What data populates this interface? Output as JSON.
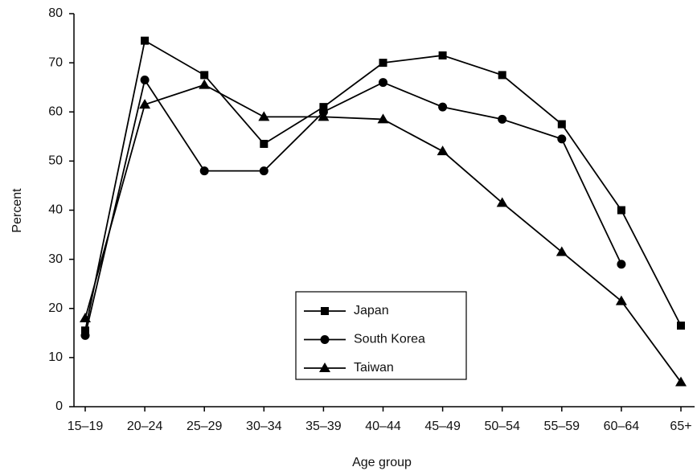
{
  "chart_data": {
    "type": "line",
    "x_label": "Age group",
    "y_label": "Percent",
    "categories": [
      "15–19",
      "20–24",
      "25–29",
      "30–34",
      "35–39",
      "40–44",
      "45–49",
      "50–54",
      "55–59",
      "60–64",
      "65+"
    ],
    "series": [
      {
        "name": "Japan",
        "color": "#000000",
        "marker": "square",
        "values": [
          15.5,
          74.5,
          67.5,
          53.5,
          61,
          70,
          71.5,
          67.5,
          57.5,
          40,
          16.5
        ]
      },
      {
        "name": "South Korea",
        "color": "#000000",
        "marker": "circle",
        "values": [
          14.5,
          66.5,
          48,
          48,
          60,
          66,
          61,
          58.5,
          54.5,
          29,
          null
        ]
      },
      {
        "name": "Taiwan",
        "color": "#000000",
        "marker": "triangle",
        "values": [
          18,
          61.5,
          65.5,
          59,
          59,
          58.5,
          52,
          41.5,
          31.5,
          21.5,
          5
        ]
      }
    ],
    "ylim": [
      0,
      80
    ],
    "yticks": [
      0,
      10,
      20,
      30,
      40,
      50,
      60,
      70,
      80
    ]
  }
}
